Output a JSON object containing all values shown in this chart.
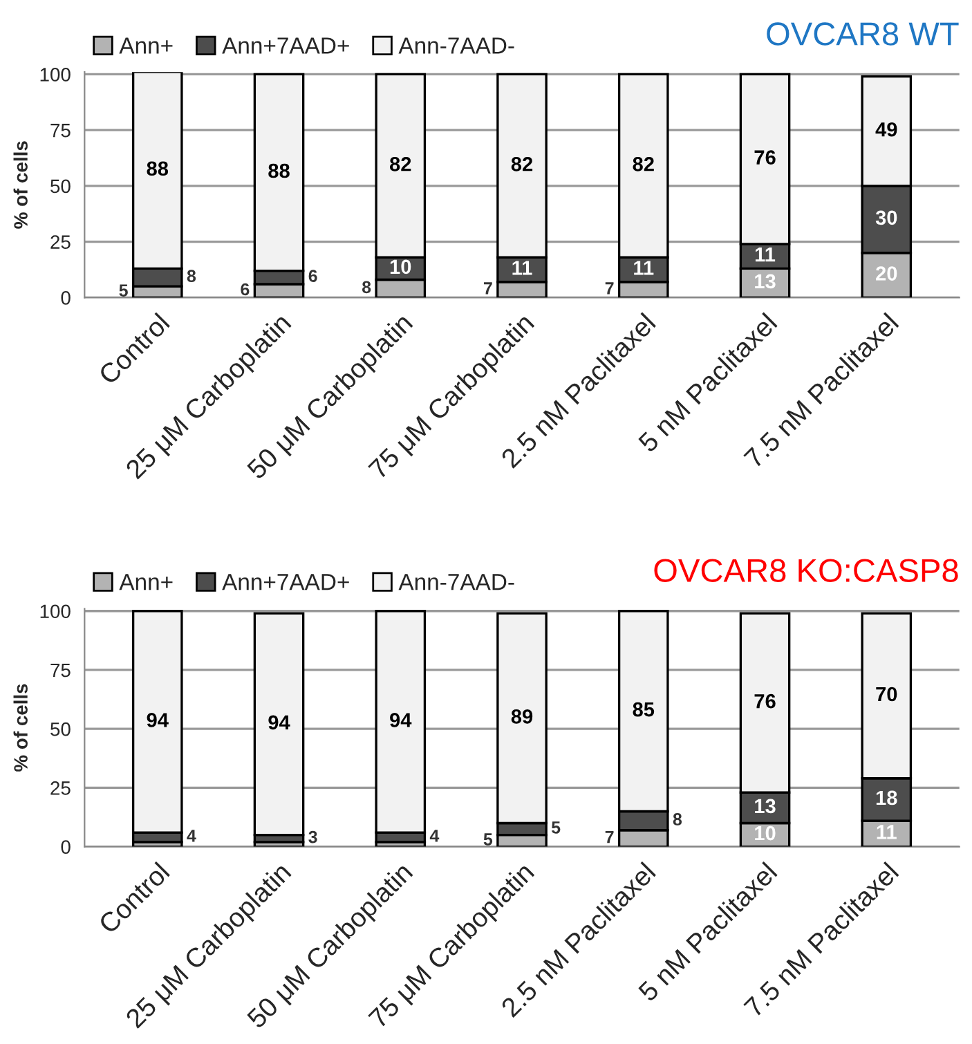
{
  "chart_data": [
    {
      "type": "bar",
      "stacked": true,
      "title": "OVCAR8 WT",
      "ylabel": "% of cells",
      "categories": [
        "Control",
        "25 μM Carboplatin",
        "50 μM Carboplatin",
        "75 μM Carboplatin",
        "2.5 nM Paclitaxel",
        "5 nM Paclitaxel",
        "7.5 nM Paclitaxel"
      ],
      "series": [
        {
          "name": "Ann+",
          "color": "#b3b3b3",
          "values": [
            5,
            6,
            8,
            7,
            7,
            13,
            20
          ],
          "value_labels": [
            "5",
            "6",
            "8",
            "7",
            "7",
            "13",
            "20"
          ]
        },
        {
          "name": "Ann+7AAD+",
          "color": "#4d4d4d",
          "values": [
            8,
            6,
            10,
            11,
            11,
            11,
            30
          ],
          "value_labels": [
            "8",
            "6",
            "10",
            "11",
            "11",
            "11",
            "30"
          ]
        },
        {
          "name": "Ann-7AAD-",
          "color": "#f2f2f2",
          "values": [
            88,
            88,
            82,
            82,
            82,
            76,
            49
          ],
          "value_labels": [
            "88",
            "88",
            "82",
            "82",
            "82",
            "76",
            "49"
          ]
        }
      ],
      "ylim": [
        0,
        101
      ],
      "yticks": [
        0,
        25,
        50,
        75,
        100
      ],
      "grid": "y",
      "legend": "top left"
    },
    {
      "type": "bar",
      "stacked": true,
      "title": "OVCAR8 KO:CASP8",
      "ylabel": "% of cells",
      "categories": [
        "Control",
        "25 μM Carboplatin",
        "50 μM Carboplatin",
        "75 μM Carboplatin",
        "2.5 nM Paclitaxel",
        "5 nM Paclitaxel",
        "7.5 nM Paclitaxel"
      ],
      "series": [
        {
          "name": "Ann+",
          "color": "#b3b3b3",
          "values": [
            2,
            2,
            2,
            5,
            7,
            10,
            11
          ],
          "value_labels": [
            null,
            null,
            null,
            "5",
            "7",
            "10",
            "11"
          ]
        },
        {
          "name": "Ann+7AAD+",
          "color": "#4d4d4d",
          "values": [
            4,
            3,
            4,
            5,
            8,
            13,
            18
          ],
          "value_labels": [
            "4",
            "3",
            "4",
            "5",
            "8",
            "13",
            "18"
          ]
        },
        {
          "name": "Ann-7AAD-",
          "color": "#f2f2f2",
          "values": [
            94,
            94,
            94,
            89,
            85,
            76,
            70
          ],
          "value_labels": [
            "94",
            "94",
            "94",
            "89",
            "85",
            "76",
            "70"
          ]
        }
      ],
      "ylim": [
        0,
        101
      ],
      "yticks": [
        0,
        25,
        50,
        75,
        100
      ],
      "grid": "y",
      "legend": "top left"
    }
  ]
}
